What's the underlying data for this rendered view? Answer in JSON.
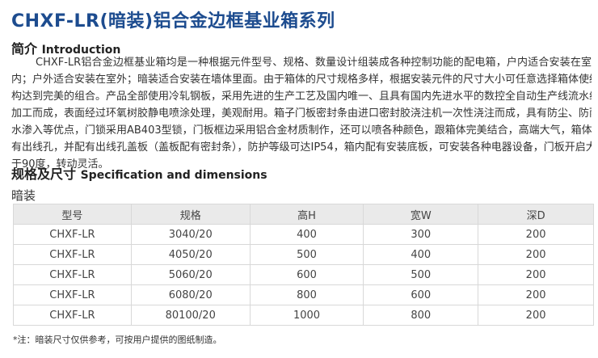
{
  "title": "CHXF-LR(暗装)铝合金边框基业箱系列",
  "intro": {
    "heading_cn": "简介",
    "heading_en": "Introduction",
    "lines": [
      "CHXF-LR铝合金边框基业箱均是一种根据元件型号、规格、数量设计组装成各种控制功能的配电箱，户内适合安装在室",
      "内；户外适合安装在室外；暗装适合安装在墙体里面。由于箱体的尺寸规格多样，根据安装元件的尺寸大小可任意选择箱体使结",
      "构达到完美的组合。产品全部使用冷轧钢板，采用先进的生产工艺及国内唯一、且具有国内先进水平的数控全自动生产线流水线",
      "加工而成，表面经过环氧树胶静电喷涂处理，美观耐用。箱子门板密封条由进口密封胶浇注机一次性浇注而成，具有防尘、防雨",
      "水渗入等优点，门锁采用AB403型锁，门板框边采用铝合金材质制作，还可以喷各种颜色，跟箱体完美结合，高端大气，箱体下",
      "有出线孔，并配有出线孔盖板（盖板配有密封条），防护等级可达IP54，箱内配有安装底板，可安装各种电器设备，门板开启大",
      "于90度，转动灵活。"
    ]
  },
  "spec": {
    "heading_cn": "规格及尺寸",
    "heading_en": "Specification and dimensions",
    "subheading": "暗装",
    "columns": [
      "型号",
      "规格",
      "高H",
      "宽W",
      "深D"
    ],
    "rows": [
      [
        "CHXF-LR",
        "3040/20",
        "400",
        "300",
        "200"
      ],
      [
        "CHXF-LR",
        "4050/20",
        "500",
        "400",
        "200"
      ],
      [
        "CHXF-LR",
        "5060/20",
        "600",
        "500",
        "200"
      ],
      [
        "CHXF-LR",
        "6080/20",
        "800",
        "600",
        "200"
      ],
      [
        "CHXF-LR",
        "80100/20",
        "1000",
        "800",
        "200"
      ]
    ],
    "note": "*注：暗装尺寸仅供参考，可按用户提供的图纸制造。"
  },
  "colors": {
    "title": "#1d4c8f",
    "header_bg": "#eaeaea",
    "border": "#d8d8d8"
  }
}
